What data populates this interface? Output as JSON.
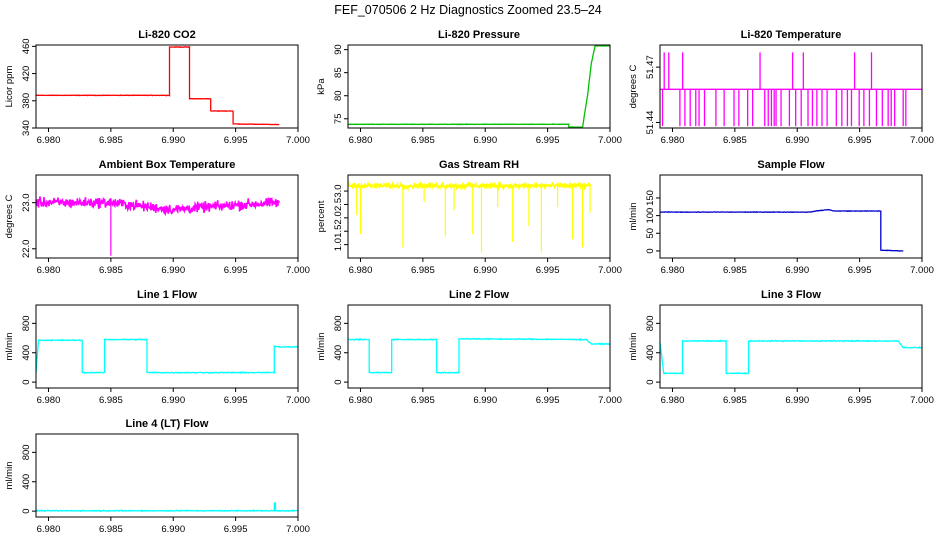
{
  "figure_title": "FEF_070506  2 Hz Diagnostics Zoomed 23.5–24",
  "colors": {
    "red": "#ff0000",
    "green": "#00c000",
    "magenta": "#ff00ff",
    "yellow": "#ffff00",
    "blue": "#0000cc",
    "cyan": "#00ffff"
  },
  "chart_data": [
    {
      "type": "line",
      "title": "Li-820 CO2",
      "xlabel": "",
      "ylabel": "Licor ppm",
      "xlim": [
        6.979,
        7.0
      ],
      "ylim": [
        340,
        462
      ],
      "xticks": [
        6.98,
        6.985,
        6.99,
        6.995,
        7.0
      ],
      "xtick_labels": [
        "6.980",
        "6.985",
        "6.990",
        "6.995",
        "7.000"
      ],
      "yticks": [
        340,
        380,
        420,
        460
      ],
      "ytick_labels": [
        "340",
        "380",
        "420",
        "460"
      ],
      "color": "red",
      "series": [
        {
          "x": [
            6.979,
            6.9897,
            6.9897,
            6.9913,
            6.9913,
            6.993,
            6.993,
            6.9948,
            6.9948,
            6.9985
          ],
          "y": [
            388,
            388,
            459,
            459,
            383,
            383,
            365,
            365,
            346,
            345
          ]
        }
      ]
    },
    {
      "type": "line",
      "title": "Li-820 Pressure",
      "xlabel": "",
      "ylabel": "kPa",
      "xlim": [
        6.979,
        7.0
      ],
      "ylim": [
        73,
        91
      ],
      "xticks": [
        6.98,
        6.985,
        6.99,
        6.995,
        7.0
      ],
      "xtick_labels": [
        "6.980",
        "6.985",
        "6.990",
        "6.995",
        "7.000"
      ],
      "yticks": [
        75,
        80,
        85,
        90
      ],
      "ytick_labels": [
        "75",
        "80",
        "85",
        "90"
      ],
      "color": "green",
      "series": [
        {
          "x": [
            6.979,
            6.9967,
            6.9967,
            6.9978,
            6.9982,
            6.9985,
            6.9988,
            7.0
          ],
          "y": [
            73.8,
            73.8,
            73.2,
            73.2,
            80,
            87,
            90.8,
            90.8
          ]
        }
      ]
    },
    {
      "type": "line",
      "title": "Li-820 Temperature",
      "xlabel": "",
      "ylabel": "degrees C",
      "xlim": [
        6.979,
        7.0
      ],
      "ylim": [
        51.437,
        51.482
      ],
      "xticks": [
        6.98,
        6.985,
        6.99,
        6.995,
        7.0
      ],
      "xtick_labels": [
        "6.980",
        "6.985",
        "6.990",
        "6.995",
        "7.000"
      ],
      "yticks": [
        51.44,
        51.47
      ],
      "ytick_labels": [
        "51.44",
        "51.47"
      ],
      "color": "magenta",
      "series": [
        {
          "x": [
            6.979,
            7.0
          ],
          "y": [
            51.458,
            51.458
          ]
        }
      ]
    },
    {
      "type": "line",
      "title": "Ambient Box Temperature",
      "xlabel": "",
      "ylabel": "degrees C",
      "xlim": [
        6.979,
        7.0
      ],
      "ylim": [
        21.8,
        23.6
      ],
      "xticks": [
        6.98,
        6.985,
        6.99,
        6.995,
        7.0
      ],
      "xtick_labels": [
        "6.980",
        "6.985",
        "6.990",
        "6.995",
        "7.000"
      ],
      "yticks": [
        22.0,
        23.0
      ],
      "ytick_labels": [
        "22.0",
        "23.0"
      ],
      "color": "magenta",
      "series": [
        {
          "x": [
            6.979,
            6.985,
            6.99,
            6.995,
            6.9985
          ],
          "y": [
            23.0,
            23.0,
            22.85,
            22.95,
            23.0
          ]
        }
      ]
    },
    {
      "type": "line",
      "title": "Gas Stream RH",
      "xlabel": "",
      "ylabel": "percent",
      "xlim": [
        6.979,
        7.0
      ],
      "ylim": [
        0.5,
        3.6
      ],
      "xticks": [
        6.98,
        6.985,
        6.99,
        6.995,
        7.0
      ],
      "xtick_labels": [
        "6.980",
        "6.985",
        "6.990",
        "6.995",
        "7.000"
      ],
      "yticks": [
        1.0,
        1.5,
        2.0,
        2.5,
        3.0
      ],
      "ytick_labels": [
        "1.0",
        "1.5",
        "2.0",
        "2.5",
        "3.0"
      ],
      "color": "yellow",
      "series": [
        {
          "x": [
            6.979,
            6.9985
          ],
          "y": [
            3.2,
            3.2
          ]
        }
      ]
    },
    {
      "type": "line",
      "title": "Sample Flow",
      "xlabel": "",
      "ylabel": "ml/min",
      "xlim": [
        6.979,
        7.0
      ],
      "ylim": [
        -20,
        215
      ],
      "xticks": [
        6.98,
        6.985,
        6.99,
        6.995,
        7.0
      ],
      "xtick_labels": [
        "6.980",
        "6.985",
        "6.990",
        "6.995",
        "7.000"
      ],
      "yticks": [
        0,
        50,
        100,
        150
      ],
      "ytick_labels": [
        "0",
        "50",
        "100",
        "150"
      ],
      "color": "blue",
      "series": [
        {
          "x": [
            6.979,
            6.991,
            6.9915,
            6.9925,
            6.993,
            6.9967,
            6.9967,
            6.9985
          ],
          "y": [
            110,
            110,
            113,
            117,
            113,
            113,
            2,
            0
          ]
        }
      ]
    },
    {
      "type": "line",
      "title": "Line 1 Flow",
      "xlabel": "",
      "ylabel": "ml/min",
      "xlim": [
        6.979,
        7.0
      ],
      "ylim": [
        -80,
        1050
      ],
      "xticks": [
        6.98,
        6.985,
        6.99,
        6.995,
        7.0
      ],
      "xtick_labels": [
        "6.980",
        "6.985",
        "6.990",
        "6.995",
        "7.000"
      ],
      "yticks": [
        0,
        400,
        800
      ],
      "ytick_labels": [
        "0",
        "400",
        "800"
      ],
      "color": "cyan",
      "series": [
        {
          "x": [
            6.979,
            6.9792,
            6.9827,
            6.9827,
            6.9845,
            6.9845,
            6.9879,
            6.9879,
            6.9981,
            6.9981,
            6.9985,
            7.0
          ],
          "y": [
            130,
            570,
            570,
            130,
            130,
            580,
            580,
            130,
            130,
            490,
            480,
            480
          ]
        }
      ]
    },
    {
      "type": "line",
      "title": "Line 2 Flow",
      "xlabel": "",
      "ylabel": "ml/min",
      "xlim": [
        6.979,
        7.0
      ],
      "ylim": [
        -80,
        1050
      ],
      "xticks": [
        6.98,
        6.985,
        6.99,
        6.995,
        7.0
      ],
      "xtick_labels": [
        "6.980",
        "6.985",
        "6.990",
        "6.995",
        "7.000"
      ],
      "yticks": [
        0,
        400,
        800
      ],
      "ytick_labels": [
        "0",
        "400",
        "800"
      ],
      "color": "cyan",
      "series": [
        {
          "x": [
            6.979,
            6.9807,
            6.9807,
            6.9825,
            6.9825,
            6.9861,
            6.9861,
            6.9879,
            6.9879,
            6.9981,
            6.9985,
            7.0
          ],
          "y": [
            580,
            580,
            130,
            130,
            580,
            580,
            130,
            130,
            590,
            580,
            520,
            520
          ]
        }
      ]
    },
    {
      "type": "line",
      "title": "Line 3 Flow",
      "xlabel": "",
      "ylabel": "ml/min",
      "xlim": [
        6.979,
        7.0
      ],
      "ylim": [
        -80,
        1050
      ],
      "xticks": [
        6.98,
        6.985,
        6.99,
        6.995,
        7.0
      ],
      "xtick_labels": [
        "6.980",
        "6.985",
        "6.990",
        "6.995",
        "7.000"
      ],
      "yticks": [
        0,
        400,
        800
      ],
      "ytick_labels": [
        "0",
        "400",
        "800"
      ],
      "color": "cyan",
      "series": [
        {
          "x": [
            6.979,
            6.9793,
            6.9808,
            6.9808,
            6.9843,
            6.9843,
            6.9861,
            6.9861,
            6.9981,
            6.9985,
            7.0
          ],
          "y": [
            540,
            120,
            120,
            560,
            560,
            120,
            120,
            560,
            560,
            470,
            470
          ]
        }
      ]
    },
    {
      "type": "line",
      "title": "Line 4 (LT) Flow",
      "xlabel": "",
      "ylabel": "ml/min",
      "xlim": [
        6.979,
        7.0
      ],
      "ylim": [
        -80,
        1050
      ],
      "xticks": [
        6.98,
        6.985,
        6.99,
        6.995,
        7.0
      ],
      "xtick_labels": [
        "6.980",
        "6.985",
        "6.990",
        "6.995",
        "7.000"
      ],
      "yticks": [
        0,
        400,
        800
      ],
      "ytick_labels": [
        "0",
        "400",
        "800"
      ],
      "color": "cyan",
      "series": [
        {
          "x": [
            6.979,
            6.9981,
            6.9981,
            6.9982,
            6.9982,
            7.0
          ],
          "y": [
            5,
            5,
            110,
            110,
            5,
            5
          ]
        }
      ]
    }
  ]
}
